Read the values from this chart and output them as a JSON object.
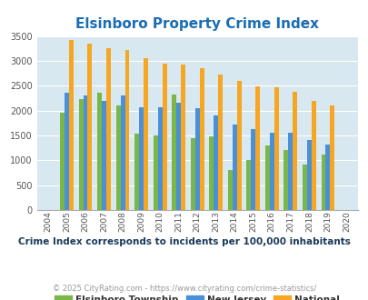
{
  "title": "Elsinboro Property Crime Index",
  "years": [
    2004,
    2005,
    2006,
    2007,
    2008,
    2009,
    2010,
    2011,
    2012,
    2013,
    2014,
    2015,
    2016,
    2017,
    2018,
    2019,
    2020
  ],
  "elsinboro": [
    0,
    1950,
    2230,
    2350,
    2100,
    1530,
    1500,
    2330,
    1450,
    1480,
    800,
    1000,
    1300,
    1200,
    920,
    1110,
    0
  ],
  "new_jersey": [
    0,
    2360,
    2300,
    2200,
    2310,
    2070,
    2070,
    2150,
    2050,
    1900,
    1720,
    1620,
    1560,
    1560,
    1400,
    1320,
    0
  ],
  "national": [
    0,
    3420,
    3340,
    3260,
    3210,
    3050,
    2950,
    2920,
    2860,
    2730,
    2590,
    2490,
    2470,
    2370,
    2200,
    2110,
    0
  ],
  "elsinboro_color": "#7ab648",
  "nj_color": "#4a90d9",
  "national_color": "#f5a623",
  "plot_bg": "#d8e8f0",
  "ylim": [
    0,
    3500
  ],
  "yticks": [
    0,
    500,
    1000,
    1500,
    2000,
    2500,
    3000,
    3500
  ],
  "subtitle": "Crime Index corresponds to incidents per 100,000 inhabitants",
  "copyright": "© 2025 CityRating.com - https://www.cityrating.com/crime-statistics/",
  "legend_labels": [
    "Elsinboro Township",
    "New Jersey",
    "National"
  ],
  "title_color": "#1a6db5",
  "subtitle_color": "#1a3a5c",
  "copyright_color": "#999999"
}
